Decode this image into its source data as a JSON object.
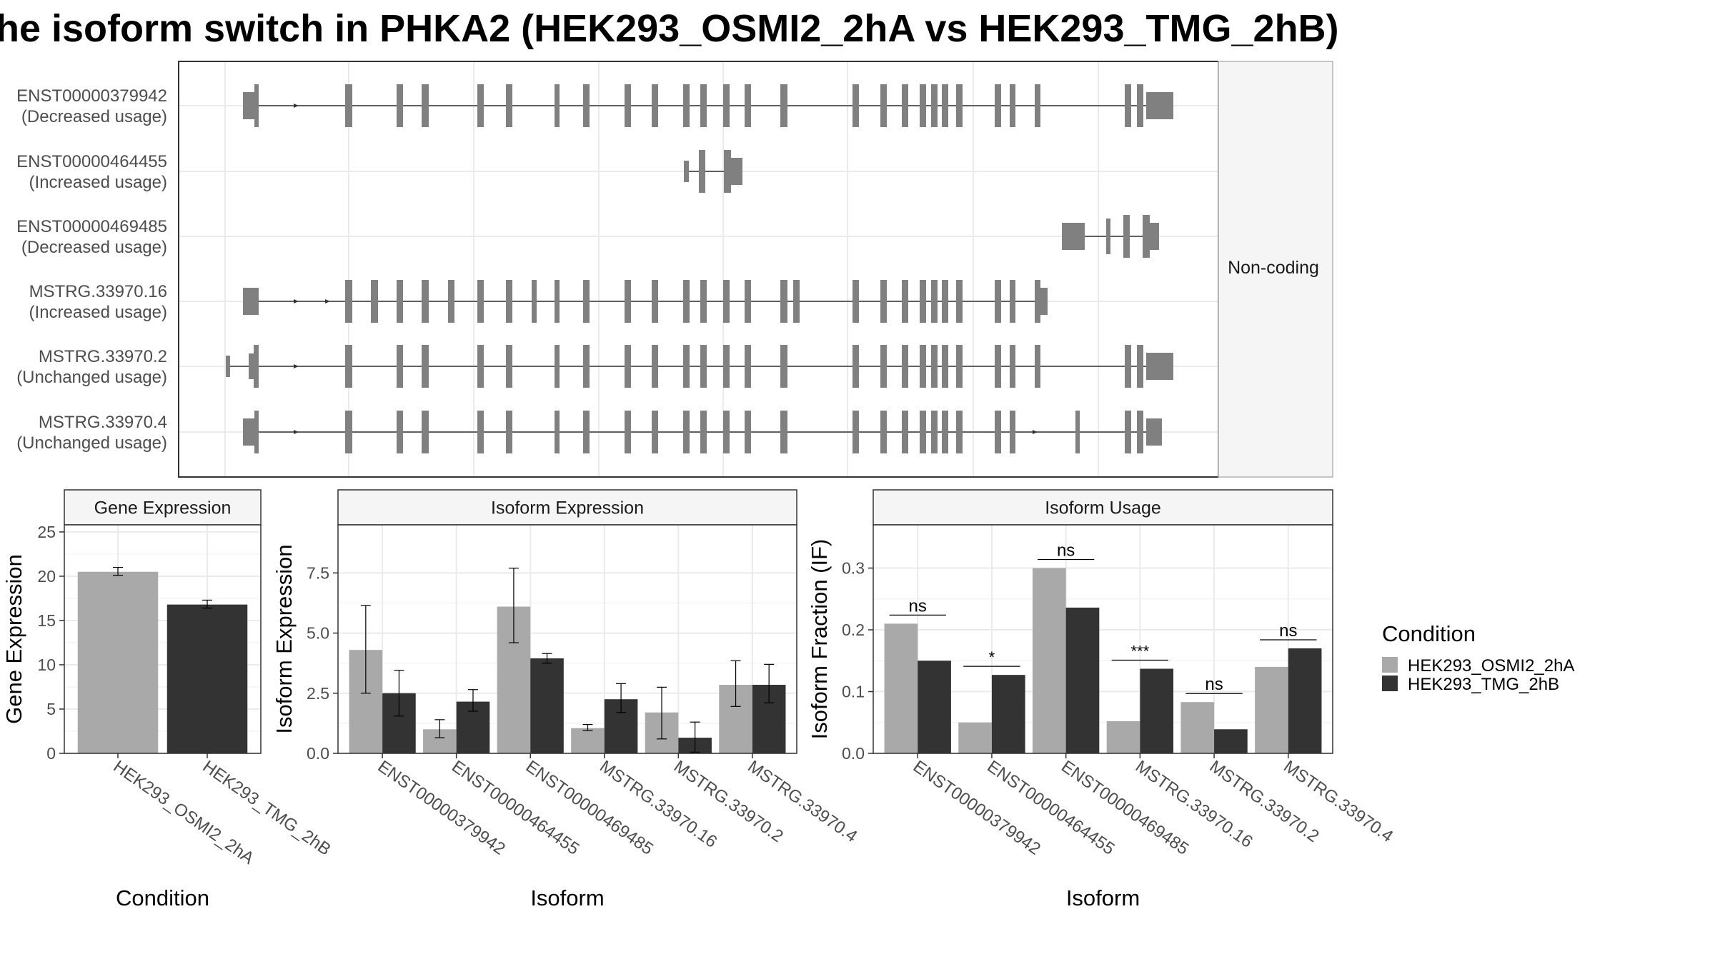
{
  "title": "he isoform switch in PHKA2 (HEK293_OSMI2_2hA vs HEK293_TMG_2hB)",
  "colors": {
    "cond_a": "#a9a9a9",
    "cond_b": "#333333",
    "exon": "#808080",
    "grid": "#ebebeb",
    "strip": "#f5f5f5"
  },
  "structure": {
    "strip_label": "Non-coding",
    "transcripts": [
      {
        "id": "ENST00000379942",
        "usage": "(Decreased usage)"
      },
      {
        "id": "ENST00000464455",
        "usage": "(Increased usage)"
      },
      {
        "id": "ENST00000469485",
        "usage": "(Decreased usage)"
      },
      {
        "id": "MSTRG.33970.16",
        "usage": "(Increased usage)"
      },
      {
        "id": "MSTRG.33970.2",
        "usage": "(Unchanged usage)"
      },
      {
        "id": "MSTRG.33970.4",
        "usage": "(Unchanged usage)"
      }
    ]
  },
  "legend": {
    "title": "Condition",
    "items": [
      "HEK293_OSMI2_2hA",
      "HEK293_TMG_2hB"
    ]
  },
  "chart_data": [
    {
      "type": "bar",
      "title": "Gene Expression",
      "xlabel": "Condition",
      "ylabel": "Gene Expression",
      "categories": [
        "HEK293_OSMI2_2hA",
        "HEK293_TMG_2hB"
      ],
      "values": [
        20.5,
        16.8
      ],
      "err_low": [
        20.1,
        16.4
      ],
      "err_high": [
        21.0,
        17.3
      ],
      "ylim": [
        0,
        25.8
      ],
      "yticks": [
        0,
        5,
        10,
        15,
        20,
        25
      ],
      "ytick_labels": [
        "0",
        "5",
        "10",
        "15",
        "20",
        "25"
      ]
    },
    {
      "type": "bar",
      "title": "Isoform Expression",
      "xlabel": "Isoform",
      "ylabel": "Isoform Expression",
      "categories": [
        "ENST00000379942",
        "ENST00000464455",
        "ENST00000469485",
        "MSTRG.33970.16",
        "MSTRG.33970.2",
        "MSTRG.33970.4"
      ],
      "series": [
        {
          "name": "HEK293_OSMI2_2hA",
          "values": [
            4.3,
            1.0,
            6.1,
            1.05,
            1.7,
            2.85
          ],
          "err_low": [
            2.5,
            0.65,
            4.6,
            0.95,
            0.6,
            1.95
          ],
          "err_high": [
            6.15,
            1.4,
            7.7,
            1.2,
            2.75,
            3.85
          ]
        },
        {
          "name": "HEK293_TMG_2hB",
          "values": [
            2.5,
            2.15,
            3.95,
            2.25,
            0.65,
            2.85
          ],
          "err_low": [
            1.55,
            1.75,
            3.75,
            1.7,
            0.05,
            2.1
          ],
          "err_high": [
            3.45,
            2.65,
            4.15,
            2.9,
            1.3,
            3.7
          ]
        }
      ],
      "ylim": [
        0,
        9.5
      ],
      "yticks": [
        0,
        2.5,
        5.0,
        7.5
      ],
      "ytick_labels": [
        "0.0",
        "2.5",
        "5.0",
        "7.5"
      ]
    },
    {
      "type": "bar",
      "title": "Isoform Usage",
      "xlabel": "Isoform",
      "ylabel": "Isoform Fraction (IF)",
      "categories": [
        "ENST00000379942",
        "ENST00000464455",
        "ENST00000469485",
        "MSTRG.33970.16",
        "MSTRG.33970.2",
        "MSTRG.33970.4"
      ],
      "series": [
        {
          "name": "HEK293_OSMI2_2hA",
          "values": [
            0.21,
            0.05,
            0.3,
            0.052,
            0.083,
            0.14
          ]
        },
        {
          "name": "HEK293_TMG_2hB",
          "values": [
            0.15,
            0.127,
            0.236,
            0.137,
            0.039,
            0.17
          ]
        }
      ],
      "significance": [
        "ns",
        "*",
        "ns",
        "***",
        "ns",
        "ns"
      ],
      "ylim": [
        0,
        0.37
      ],
      "yticks": [
        0.0,
        0.1,
        0.2,
        0.3
      ],
      "ytick_labels": [
        "0.0",
        "0.1",
        "0.2",
        "0.3"
      ]
    }
  ]
}
